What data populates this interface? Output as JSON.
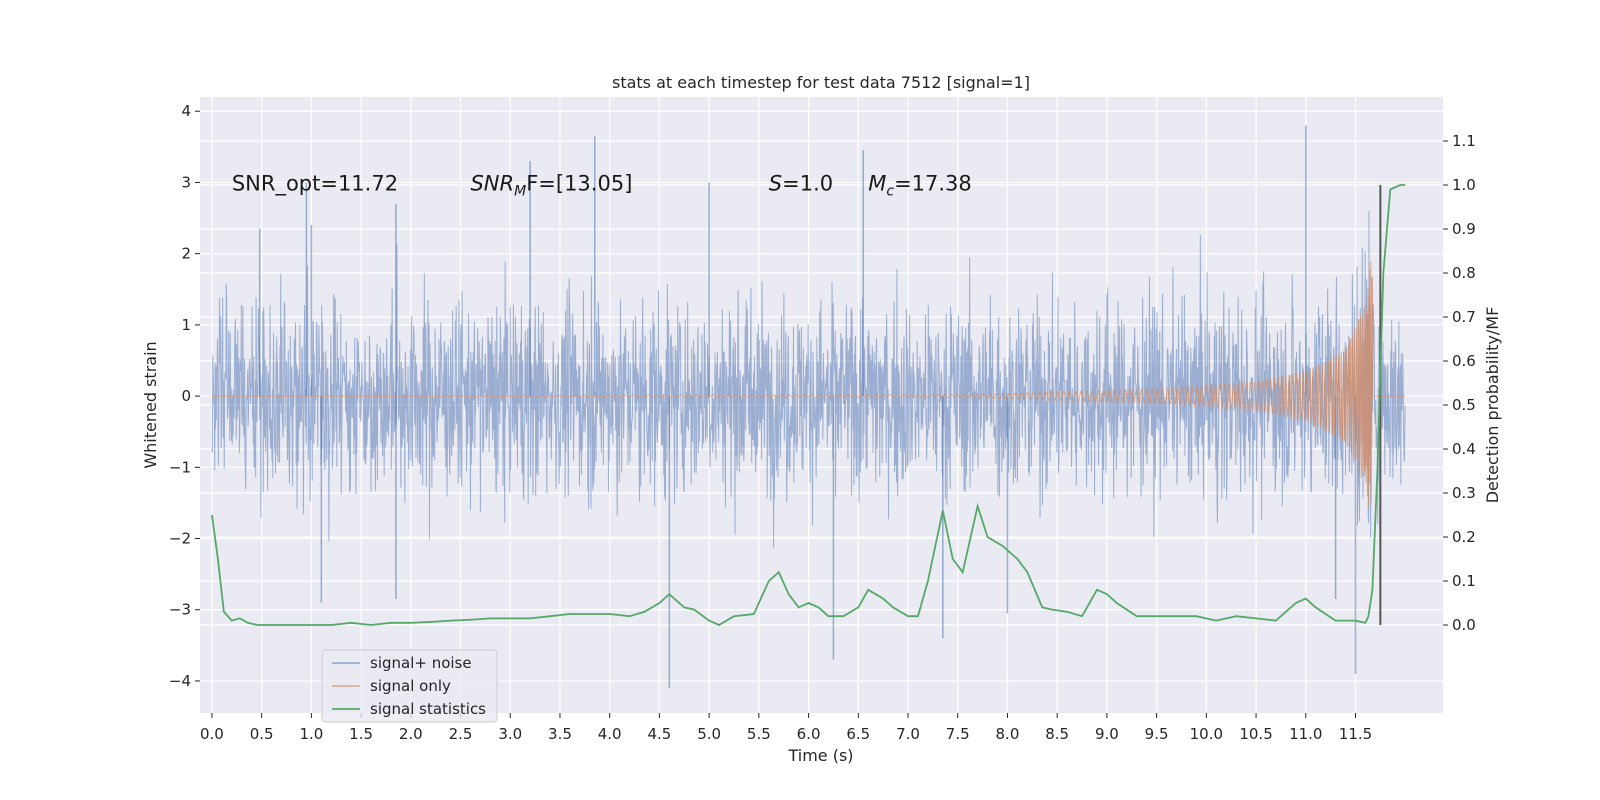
{
  "chart_data": {
    "type": "line",
    "title": "stats at each timestep for test data 7512 [signal=1]",
    "xlabel": "Time (s)",
    "ylabel": "Whitened strain",
    "y2label": "Detection probability/MF",
    "xlim": [
      -0.12,
      12.38
    ],
    "ylim": [
      -4.45,
      4.2
    ],
    "y2lim": [
      -0.2,
      1.2
    ],
    "x_ticks": [
      0.0,
      0.5,
      1.0,
      1.5,
      2.0,
      2.5,
      3.0,
      3.5,
      4.0,
      4.5,
      5.0,
      5.5,
      6.0,
      6.5,
      7.0,
      7.5,
      8.0,
      8.5,
      9.0,
      9.5,
      10.0,
      10.5,
      11.0,
      11.5
    ],
    "x_tick_labels": [
      "0.0",
      "0.5",
      "1.0",
      "1.5",
      "2.0",
      "2.5",
      "3.0",
      "3.5",
      "4.0",
      "4.5",
      "5.0",
      "5.5",
      "6.0",
      "6.5",
      "7.0",
      "7.5",
      "8.0",
      "8.5",
      "9.0",
      "9.5",
      "10.0",
      "10.5",
      "11.0",
      "11.5"
    ],
    "y_ticks": [
      -4,
      -3,
      -2,
      -1,
      0,
      1,
      2,
      3,
      4
    ],
    "y_tick_labels": [
      "−4",
      "−3",
      "−2",
      "−1",
      "0",
      "1",
      "2",
      "3",
      "4"
    ],
    "y2_ticks": [
      0.0,
      0.1,
      0.2,
      0.3,
      0.4,
      0.5,
      0.6,
      0.7,
      0.8,
      0.9,
      1.0,
      1.1
    ],
    "y2_tick_labels": [
      "0.0",
      "0.1",
      "0.2",
      "0.3",
      "0.4",
      "0.5",
      "0.6",
      "0.7",
      "0.8",
      "0.9",
      "1.0",
      "1.1"
    ],
    "grid": true,
    "legend_position": "lower-left",
    "colors": {
      "background": "#eaeaf2",
      "grid": "#ffffff",
      "noise": "#4c72b0",
      "signal": "#dd8452",
      "stats": "#55a868",
      "marker": "#555555"
    },
    "series": [
      {
        "name": "signal+ noise",
        "style": "dense noise trace, envelope approx ±1.8, peaks up to ±4",
        "duration_s": 12.0,
        "peaks": [
          {
            "x": 0.48,
            "y": 2.35
          },
          {
            "x": 0.95,
            "y": 3.0
          },
          {
            "x": 1.0,
            "y": 2.4
          },
          {
            "x": 1.85,
            "y": 2.7
          },
          {
            "x": 3.2,
            "y": 3.3
          },
          {
            "x": 3.85,
            "y": 3.65
          },
          {
            "x": 5.0,
            "y": 3.0
          },
          {
            "x": 6.55,
            "y": 3.45
          },
          {
            "x": 11.0,
            "y": 3.8
          },
          {
            "x": 4.6,
            "y": -4.1
          },
          {
            "x": 6.25,
            "y": -3.7
          },
          {
            "x": 7.35,
            "y": -3.4
          },
          {
            "x": 11.5,
            "y": -3.9
          },
          {
            "x": 1.1,
            "y": -2.9
          },
          {
            "x": 1.85,
            "y": -2.85
          },
          {
            "x": 8.0,
            "y": -3.05
          },
          {
            "x": 11.3,
            "y": -2.85
          }
        ]
      },
      {
        "name": "signal only",
        "style": "chirp, amplitude grows toward merger",
        "merger_time": 11.67,
        "envelope": [
          {
            "x": 0.0,
            "y": 0.0
          },
          {
            "x": 7.5,
            "y": 0.02
          },
          {
            "x": 8.5,
            "y": 0.06
          },
          {
            "x": 9.5,
            "y": 0.1
          },
          {
            "x": 10.5,
            "y": 0.2
          },
          {
            "x": 11.0,
            "y": 0.35
          },
          {
            "x": 11.4,
            "y": 0.65
          },
          {
            "x": 11.6,
            "y": 1.3
          },
          {
            "x": 11.67,
            "y": 2.05
          }
        ]
      },
      {
        "name": "signal statistics",
        "axis": "y2",
        "x": [
          0.0,
          0.06,
          0.12,
          0.2,
          0.28,
          0.36,
          0.46,
          0.56,
          0.7,
          0.85,
          1.0,
          1.2,
          1.4,
          1.6,
          1.8,
          2.0,
          2.2,
          2.4,
          2.6,
          2.8,
          3.0,
          3.2,
          3.4,
          3.6,
          3.8,
          4.0,
          4.2,
          4.35,
          4.5,
          4.6,
          4.75,
          4.85,
          5.0,
          5.1,
          5.25,
          5.45,
          5.6,
          5.7,
          5.8,
          5.9,
          6.0,
          6.1,
          6.2,
          6.35,
          6.5,
          6.6,
          6.75,
          6.85,
          7.0,
          7.1,
          7.2,
          7.35,
          7.45,
          7.55,
          7.6,
          7.7,
          7.8,
          7.95,
          8.1,
          8.2,
          8.35,
          8.45,
          8.6,
          8.75,
          8.9,
          9.0,
          9.1,
          9.3,
          9.5,
          9.7,
          9.9,
          10.1,
          10.3,
          10.5,
          10.7,
          10.9,
          11.0,
          11.1,
          11.3,
          11.5,
          11.6,
          11.63,
          11.67,
          11.72,
          11.78,
          11.85,
          11.95,
          12.0
        ],
        "y": [
          0.25,
          0.15,
          0.03,
          0.01,
          0.015,
          0.005,
          0.0,
          0.0,
          0.0,
          0.0,
          0.0,
          0.0,
          0.005,
          0.0,
          0.005,
          0.005,
          0.007,
          0.01,
          0.012,
          0.015,
          0.015,
          0.015,
          0.02,
          0.025,
          0.025,
          0.025,
          0.02,
          0.03,
          0.05,
          0.07,
          0.04,
          0.035,
          0.01,
          0.0,
          0.02,
          0.025,
          0.1,
          0.12,
          0.07,
          0.04,
          0.05,
          0.04,
          0.02,
          0.02,
          0.04,
          0.08,
          0.06,
          0.04,
          0.02,
          0.02,
          0.1,
          0.26,
          0.15,
          0.12,
          0.17,
          0.27,
          0.2,
          0.18,
          0.15,
          0.12,
          0.04,
          0.035,
          0.03,
          0.02,
          0.08,
          0.07,
          0.05,
          0.02,
          0.02,
          0.02,
          0.02,
          0.01,
          0.02,
          0.015,
          0.01,
          0.05,
          0.06,
          0.04,
          0.01,
          0.01,
          0.005,
          0.02,
          0.08,
          0.35,
          0.8,
          0.99,
          1.0,
          1.0
        ]
      }
    ],
    "vertical_marker_x": 11.75,
    "annotations": [
      {
        "text": "SNR_opt=11.72",
        "x": 0.2,
        "y": 3.0
      },
      {
        "text": "SNR",
        "suffix": "F=[13.05]",
        "sub": "M",
        "x": 2.6,
        "y": 3.0
      },
      {
        "text": "S",
        "suffix": "=1.0",
        "x": 5.6,
        "y": 3.0
      },
      {
        "text": "M",
        "sub": "c",
        "suffix": "=17.38",
        "x": 6.6,
        "y": 3.0
      }
    ]
  }
}
